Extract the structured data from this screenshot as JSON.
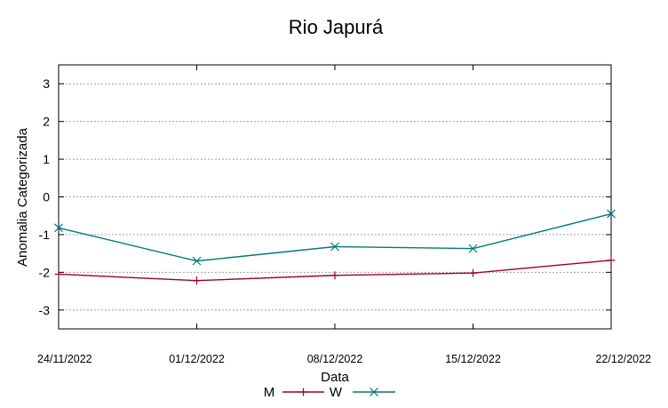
{
  "chart_data": {
    "type": "line",
    "title": "Rio Japurá",
    "xlabel": "Data",
    "ylabel": "Anomalia Categorizada",
    "categories": [
      "24/11/2022",
      "01/12/2022",
      "08/12/2022",
      "15/12/2022",
      "22/12/2022"
    ],
    "ylim": [
      -3.5,
      3.5
    ],
    "yticks": [
      "-3",
      "-2",
      "-1",
      "0",
      "1",
      "2",
      "3"
    ],
    "grid": true,
    "legend_position": "bottom",
    "series": [
      {
        "name": "M",
        "color": "#a0001e",
        "marker": "plus",
        "values": [
          -2.05,
          -2.22,
          -2.08,
          -2.02,
          -1.68
        ]
      },
      {
        "name": "W",
        "color": "#007a7a",
        "marker": "cross",
        "values": [
          -0.82,
          -1.7,
          -1.32,
          -1.37,
          -0.45
        ]
      }
    ]
  }
}
